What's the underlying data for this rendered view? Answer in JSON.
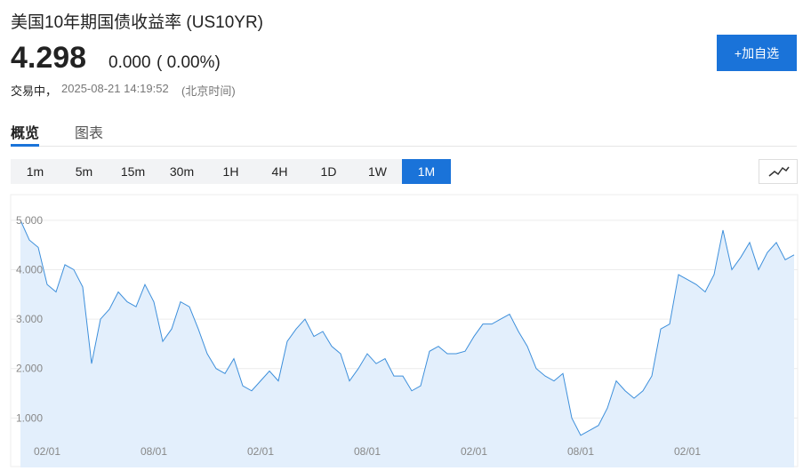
{
  "header": {
    "title": "美国10年期国债收益率",
    "code": "(US10YR)",
    "price": "4.298",
    "change": "0.000",
    "change_pct": "( 0.00%)",
    "status": "交易中，",
    "time": "2025-08-21 14:19:52",
    "timezone": "(北京时间)",
    "button": "+加自选"
  },
  "tabs": [
    "概览",
    "图表"
  ],
  "intervals": [
    "1m",
    "5m",
    "15m",
    "30m",
    "1H",
    "4H",
    "1D",
    "1W",
    "1M"
  ],
  "active_interval": 8,
  "chart_data": {
    "type": "area",
    "color": "#3d8fdb",
    "fill": "#e3effc",
    "grid": true,
    "categories": [
      null,
      null,
      null,
      "02/01",
      null,
      null,
      null,
      null,
      null,
      null,
      null,
      null,
      null,
      null,
      null,
      "08/01",
      null,
      null,
      null,
      null,
      null,
      null,
      null,
      null,
      null,
      null,
      null,
      "02/01",
      null,
      null,
      null,
      null,
      null,
      null,
      null,
      null,
      null,
      null,
      null,
      "08/01",
      null,
      null,
      null,
      null,
      null,
      null,
      null,
      null,
      null,
      null,
      null,
      "02/01",
      null,
      null,
      null,
      null,
      null,
      null,
      null,
      null,
      null,
      null,
      null,
      "08/01",
      null,
      null,
      null,
      null,
      null,
      null,
      null,
      null,
      null,
      null,
      null,
      "02/01",
      null,
      null,
      null,
      null,
      null,
      null,
      null,
      null,
      null,
      null,
      null,
      null
    ],
    "values": [
      5.0,
      4.6,
      4.45,
      3.7,
      3.55,
      4.1,
      4.0,
      3.65,
      2.1,
      3.0,
      3.2,
      3.55,
      3.35,
      3.25,
      3.7,
      3.35,
      2.55,
      2.8,
      3.35,
      3.25,
      2.8,
      2.3,
      2.0,
      1.9,
      2.2,
      1.65,
      1.55,
      1.75,
      1.95,
      1.75,
      2.55,
      2.8,
      3.0,
      2.65,
      2.75,
      2.45,
      2.3,
      1.75,
      2.0,
      2.3,
      2.1,
      2.2,
      1.85,
      1.85,
      1.55,
      1.65,
      2.35,
      2.45,
      2.3,
      2.3,
      2.35,
      2.65,
      2.9,
      2.9,
      3.0,
      3.1,
      2.75,
      2.45,
      2.0,
      1.85,
      1.75,
      1.9,
      1.0,
      0.65,
      0.75,
      0.85,
      1.2,
      1.75,
      1.55,
      1.4,
      1.55,
      1.85,
      2.8,
      2.9,
      3.9,
      3.8,
      3.7,
      3.55,
      3.9,
      4.8,
      4.0,
      4.25,
      4.55,
      4.0,
      4.35,
      4.55,
      4.2,
      4.3
    ],
    "ylim": [
      0,
      5.5
    ],
    "yticks": [
      {
        "value": 1,
        "label": "1.000"
      },
      {
        "value": 2,
        "label": "2.000"
      },
      {
        "value": 3,
        "label": "3.000"
      },
      {
        "value": 4,
        "label": "4.000"
      },
      {
        "value": 5,
        "label": "5.000"
      }
    ]
  }
}
